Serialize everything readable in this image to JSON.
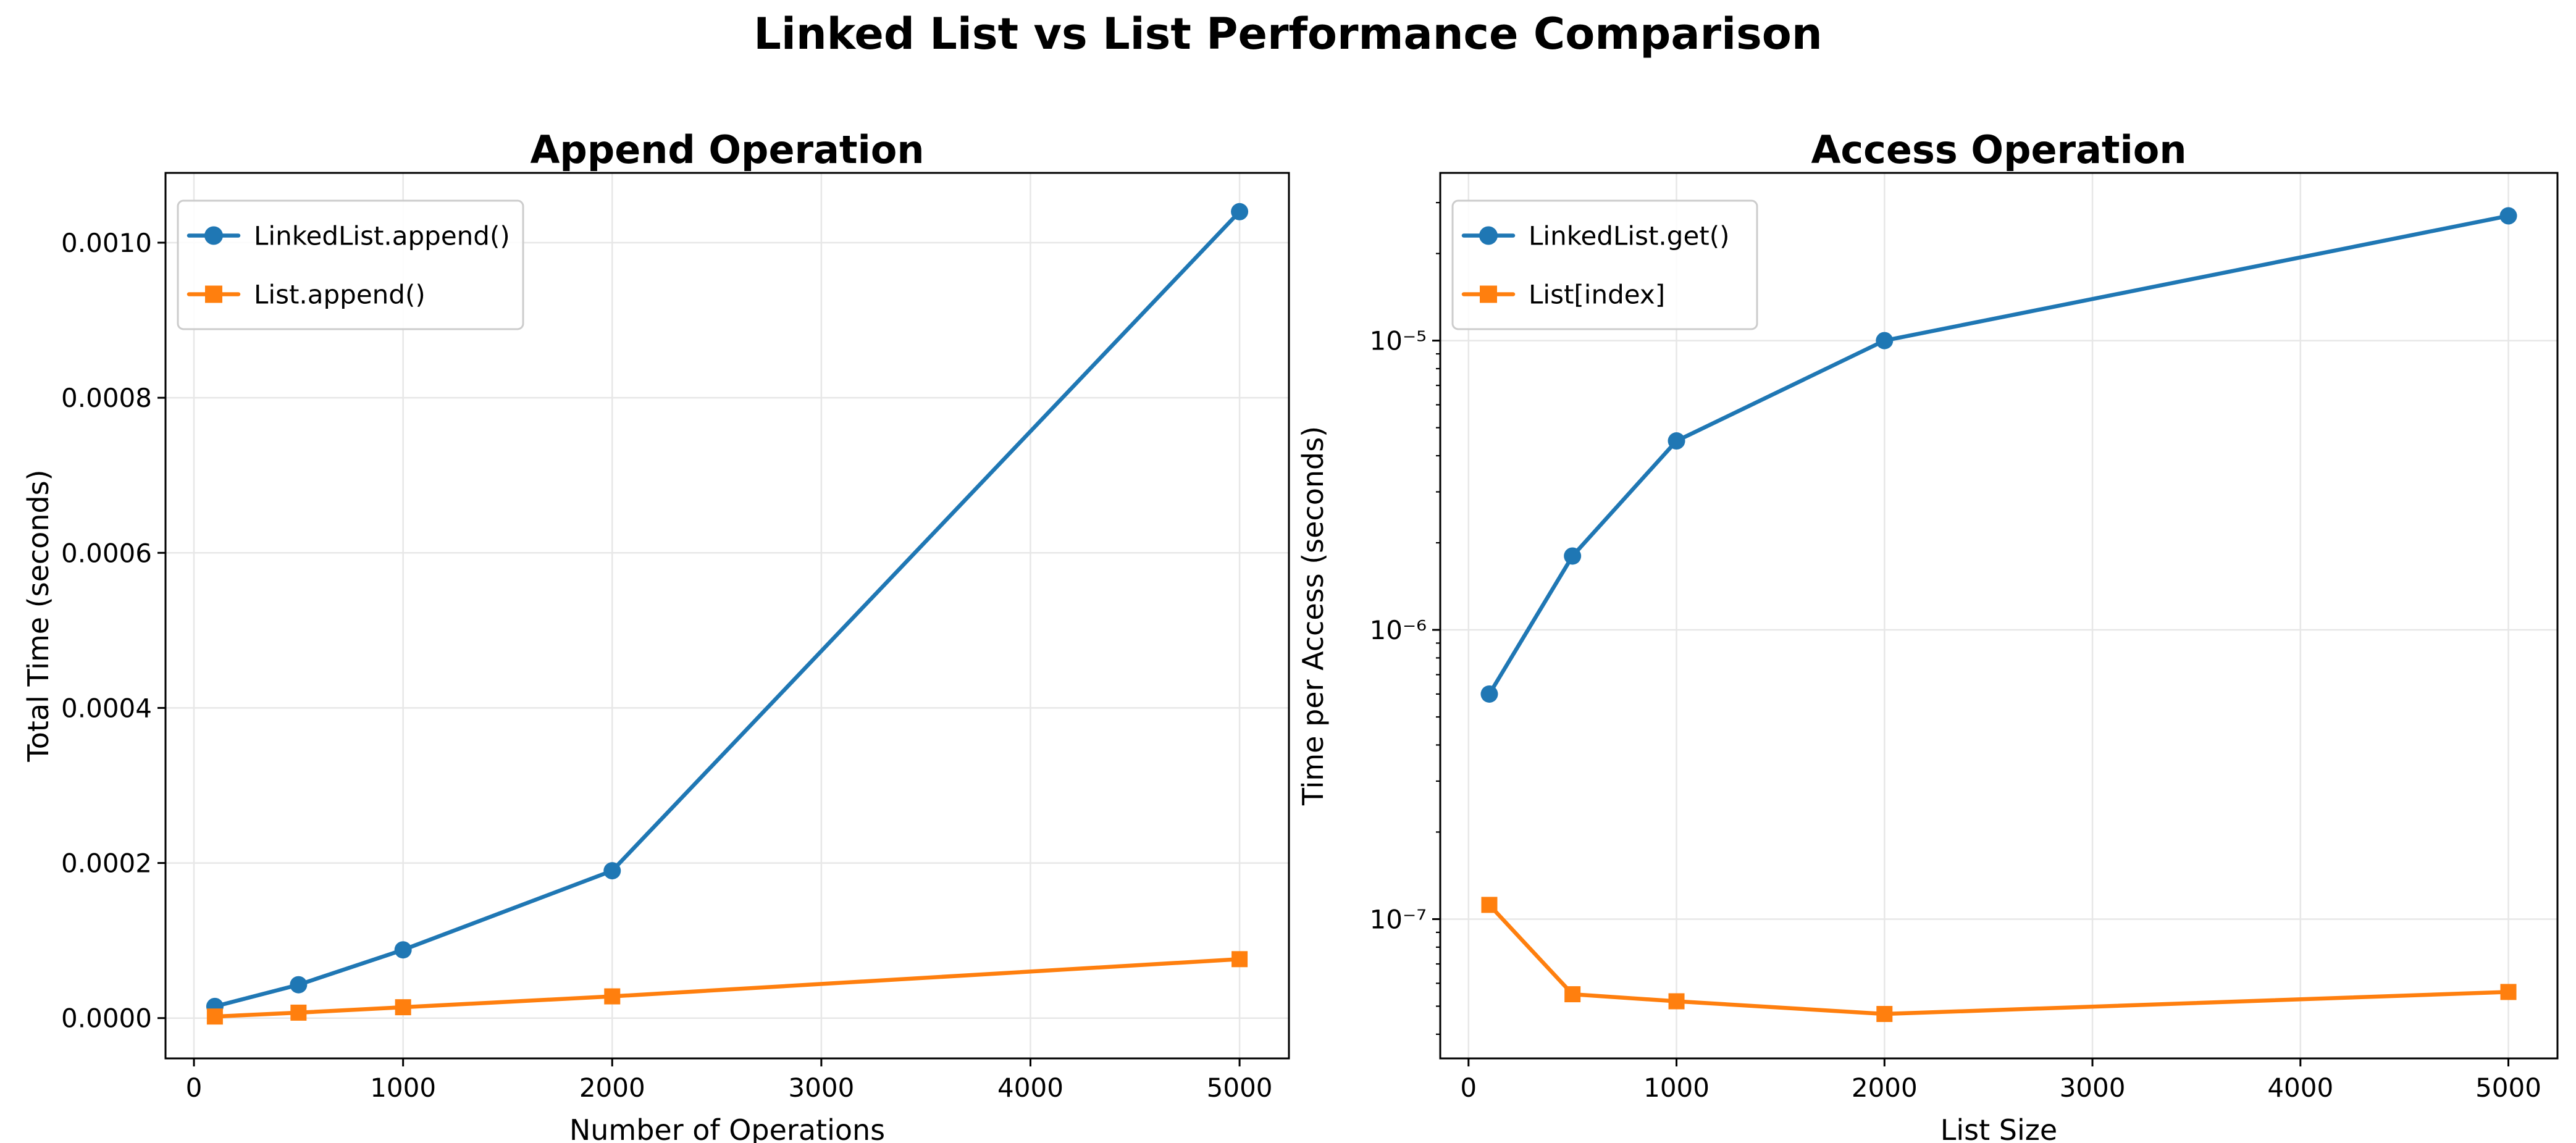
{
  "suptitle": "Linked List vs List Performance Comparison",
  "colors": {
    "blue": "#1f77b4",
    "orange": "#ff7f0e",
    "grid": "#e7e7e7",
    "spine": "#000000",
    "legend_border": "#cccccc",
    "background": "#ffffff"
  },
  "chart_data": [
    {
      "type": "line",
      "title": "Append Operation",
      "xlabel": "Number of Operations",
      "ylabel": "Total Time (seconds)",
      "x": [
        100,
        500,
        1000,
        2000,
        5000
      ],
      "series": [
        {
          "name": "LinkedList.append()",
          "color": "#1f77b4",
          "marker": "circle",
          "values": [
            1.5e-05,
            4.3e-05,
            8.8e-05,
            0.00019,
            0.00104
          ]
        },
        {
          "name": "List.append()",
          "color": "#ff7f0e",
          "marker": "square",
          "values": [
            2e-06,
            7e-06,
            1.4e-05,
            2.8e-05,
            7.6e-05
          ]
        }
      ],
      "yscale": "linear",
      "xlim": [
        -136,
        5236
      ],
      "ylim": [
        -5.2e-05,
        0.00109
      ],
      "xticks": {
        "values": [
          0,
          1000,
          2000,
          3000,
          4000,
          5000
        ],
        "labels": [
          "0",
          "1000",
          "2000",
          "3000",
          "4000",
          "5000"
        ]
      },
      "yticks": {
        "values": [
          0.0,
          0.0002,
          0.0004,
          0.0006,
          0.0008,
          0.001
        ],
        "labels": [
          "0.0000",
          "0.0002",
          "0.0004",
          "0.0006",
          "0.0008",
          "0.0010"
        ]
      },
      "grid": true,
      "legend_position": "upper left"
    },
    {
      "type": "line",
      "title": "Access Operation",
      "xlabel": "List Size",
      "ylabel": "Time per Access (seconds)",
      "x": [
        100,
        500,
        1000,
        2000,
        5000
      ],
      "series": [
        {
          "name": "LinkedList.get()",
          "color": "#1f77b4",
          "marker": "circle",
          "values": [
            6e-07,
            1.8e-06,
            4.5e-06,
            1e-05,
            2.7e-05
          ]
        },
        {
          "name": "List[index]",
          "color": "#ff7f0e",
          "marker": "square",
          "values": [
            1.12e-07,
            5.5e-08,
            5.2e-08,
            4.7e-08,
            5.6e-08
          ]
        }
      ],
      "yscale": "log",
      "xlim": [
        -136,
        5236
      ],
      "ylim": [
        3.3e-08,
        3.8e-05
      ],
      "xticks": {
        "values": [
          0,
          1000,
          2000,
          3000,
          4000,
          5000
        ],
        "labels": [
          "0",
          "1000",
          "2000",
          "3000",
          "4000",
          "5000"
        ]
      },
      "yticks": {
        "values": [
          1e-05,
          1e-06,
          1e-07
        ],
        "labels": [
          "10⁻⁵",
          "10⁻⁶",
          "10⁻⁷"
        ]
      },
      "grid": true,
      "legend_position": "upper left"
    }
  ]
}
